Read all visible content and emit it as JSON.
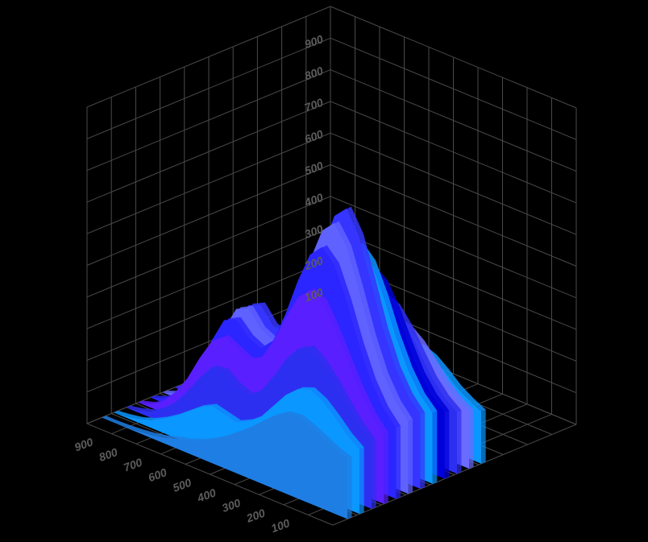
{
  "chart_data": {
    "type": "area",
    "style": "3d-stacked-ribbons",
    "title": "",
    "xlabel": "",
    "ylabel": "",
    "zlabel": "",
    "x_ticks": [
      "100",
      "200",
      "300",
      "400",
      "500",
      "600",
      "700",
      "800",
      "900"
    ],
    "z_ticks": [
      "100",
      "200",
      "300",
      "400",
      "500",
      "600",
      "700",
      "800",
      "900"
    ],
    "x_range": [
      0,
      1000
    ],
    "z_range": [
      0,
      1000
    ],
    "depth_range": [
      0,
      1000
    ],
    "grid": true,
    "grid_color": "#4a4a4a",
    "label_color": "#5c5c5c",
    "background": "#000000",
    "x": [
      0,
      50,
      100,
      150,
      200,
      250,
      300,
      350,
      400,
      450,
      500,
      550,
      600,
      650,
      700,
      750,
      800,
      850,
      900,
      950,
      1000
    ],
    "series": [
      {
        "depth": 60,
        "color": "#1f7ee3",
        "values": [
          190,
          205,
          225,
          245,
          260,
          255,
          230,
          195,
          160,
          130,
          100,
          75,
          55,
          40,
          30,
          18,
          10,
          5,
          2,
          0,
          0
        ]
      },
      {
        "depth": 110,
        "color": "#0a97ff",
        "values": [
          205,
          235,
          275,
          310,
          330,
          315,
          280,
          230,
          180,
          150,
          130,
          140,
          150,
          130,
          100,
          70,
          45,
          25,
          12,
          5,
          0
        ]
      },
      {
        "depth": 160,
        "color": "#2d2ff0",
        "values": [
          210,
          250,
          300,
          355,
          400,
          430,
          410,
          360,
          290,
          230,
          200,
          215,
          245,
          240,
          190,
          130,
          80,
          45,
          20,
          8,
          0
        ]
      },
      {
        "depth": 210,
        "color": "#5a1fff",
        "values": [
          220,
          265,
          330,
          410,
          490,
          560,
          580,
          540,
          460,
          370,
          300,
          280,
          300,
          320,
          290,
          220,
          140,
          80,
          35,
          12,
          0
        ]
      },
      {
        "depth": 260,
        "color": "#2b25ff",
        "values": [
          225,
          270,
          340,
          440,
          560,
          660,
          700,
          660,
          560,
          440,
          340,
          300,
          320,
          360,
          340,
          260,
          170,
          95,
          40,
          15,
          0
        ]
      },
      {
        "depth": 310,
        "color": "#5f62ff",
        "values": [
          230,
          275,
          345,
          450,
          580,
          700,
          760,
          720,
          610,
          470,
          360,
          310,
          330,
          380,
          360,
          280,
          180,
          100,
          45,
          15,
          0
        ]
      },
      {
        "depth": 360,
        "color": "#3535ff",
        "values": [
          235,
          280,
          350,
          455,
          590,
          720,
          790,
          750,
          630,
          480,
          360,
          310,
          325,
          375,
          355,
          275,
          175,
          95,
          40,
          12,
          0
        ]
      },
      {
        "depth": 410,
        "color": "#0a97ff",
        "values": [
          225,
          265,
          330,
          420,
          530,
          620,
          660,
          620,
          520,
          400,
          300,
          250,
          250,
          280,
          260,
          200,
          130,
          70,
          30,
          10,
          0
        ]
      },
      {
        "depth": 460,
        "color": "#0000d8",
        "values": [
          210,
          245,
          300,
          380,
          470,
          540,
          570,
          530,
          440,
          340,
          260,
          210,
          205,
          225,
          210,
          160,
          100,
          55,
          22,
          8,
          0
        ]
      },
      {
        "depth": 510,
        "color": "#2d2ff0",
        "values": [
          195,
          225,
          270,
          335,
          400,
          450,
          465,
          430,
          360,
          280,
          215,
          175,
          165,
          175,
          160,
          120,
          75,
          40,
          15,
          5,
          0
        ]
      },
      {
        "depth": 560,
        "color": "#6b6bff",
        "values": [
          180,
          205,
          240,
          290,
          335,
          365,
          370,
          340,
          285,
          225,
          175,
          145,
          135,
          140,
          125,
          95,
          60,
          30,
          12,
          4,
          0
        ]
      },
      {
        "depth": 610,
        "color": "#0a97ff",
        "values": [
          165,
          185,
          210,
          245,
          275,
          290,
          285,
          260,
          220,
          175,
          140,
          115,
          105,
          105,
          95,
          70,
          45,
          22,
          8,
          2,
          0
        ]
      }
    ]
  }
}
